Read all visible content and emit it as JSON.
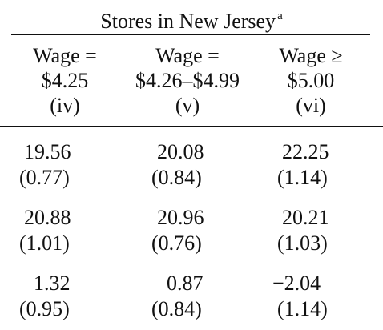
{
  "table": {
    "title": "Stores in New Jersey",
    "title_footnote": "a",
    "columns": [
      {
        "line1": "Wage =",
        "line2": "$4.25",
        "line3": "(iv)"
      },
      {
        "line1": "Wage =",
        "line2": "$4.26–$4.99",
        "line3": "(v)"
      },
      {
        "line1": "Wage ≥",
        "line2": "$5.00",
        "line3": "(vi)"
      }
    ],
    "rows": [
      {
        "values": [
          "19.56",
          "20.08",
          "22.25"
        ],
        "std_errors": [
          "(0.77)",
          "(0.84)",
          "(1.14)"
        ]
      },
      {
        "values": [
          "20.88",
          "20.96",
          "20.21"
        ],
        "std_errors": [
          "(1.01)",
          "(0.76)",
          "(1.03)"
        ]
      },
      {
        "values": [
          "1.32",
          "0.87",
          "−2.04"
        ],
        "std_errors": [
          "(0.95)",
          "(0.84)",
          "(1.14)"
        ]
      }
    ]
  }
}
